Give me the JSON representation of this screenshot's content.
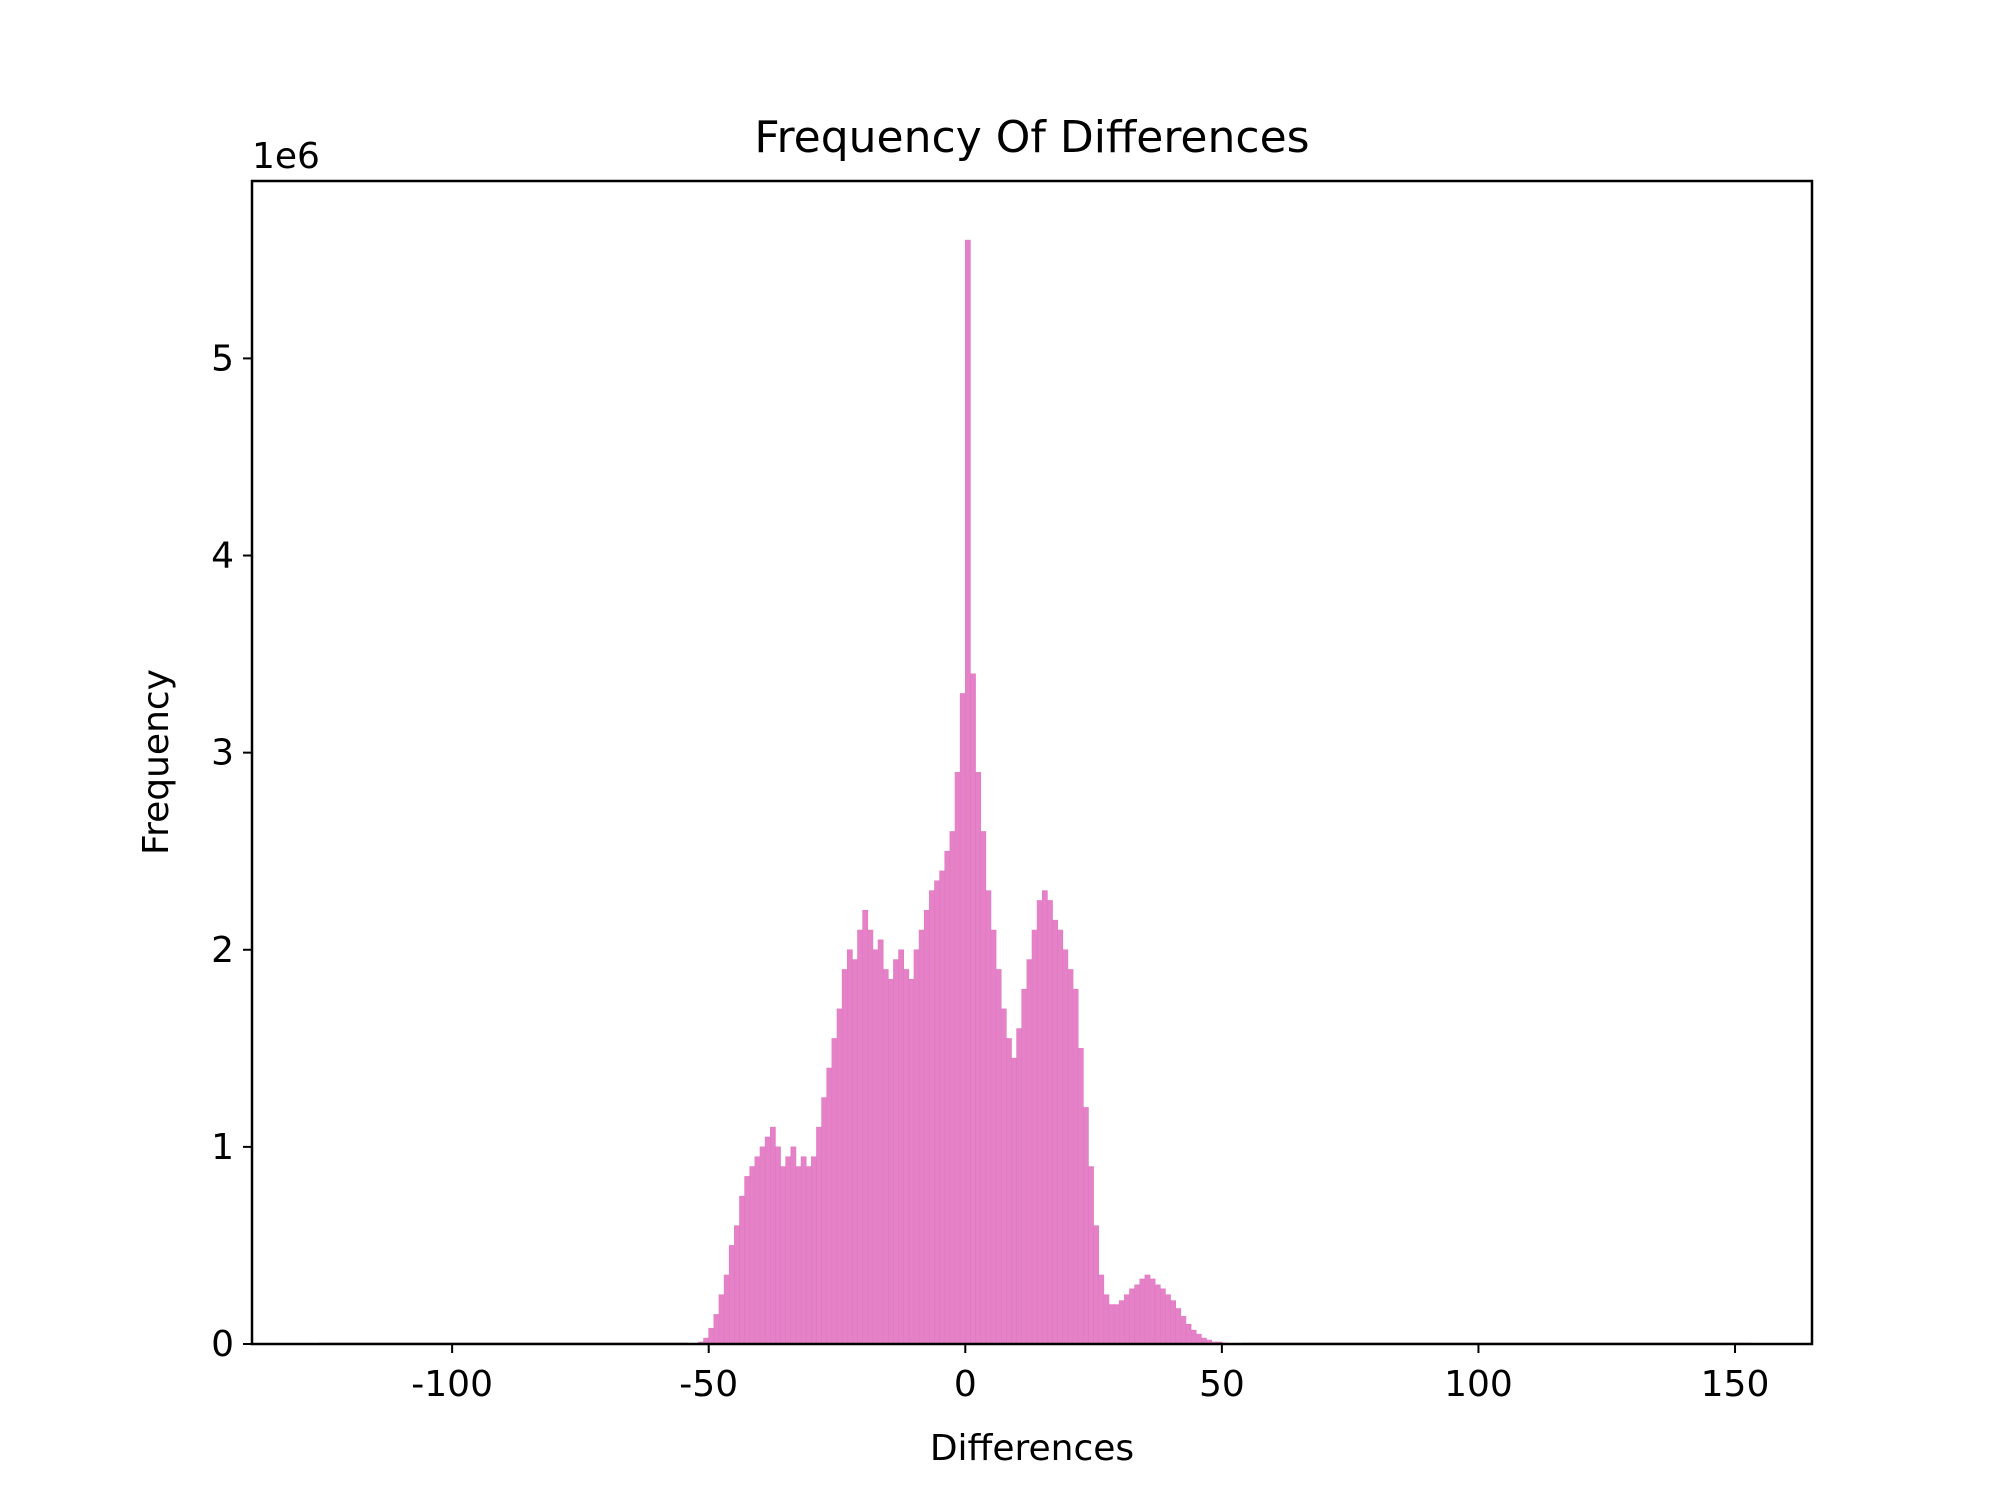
{
  "chart_data": {
    "type": "histogram",
    "title": "Frequency Of Differences",
    "xlabel": "Differences",
    "ylabel": "Frequency",
    "y_offset_label": "1e6",
    "color": "#e377c2",
    "bins": [
      -126,
      -54,
      -53,
      -52,
      -51,
      -50,
      -49,
      -48,
      -47,
      -46,
      -45,
      -44,
      -43,
      -42,
      -41,
      -40,
      -39,
      -38,
      -37,
      -36,
      -35,
      -34,
      -33,
      -32,
      -31,
      -30,
      -29,
      -28,
      -27,
      -26,
      -25,
      -24,
      -23,
      -22,
      -21,
      -20,
      -19,
      -18,
      -17,
      -16,
      -15,
      -14,
      -13,
      -12,
      -11,
      -10,
      -9,
      -8,
      -7,
      -6,
      -5,
      -4,
      -3,
      -2,
      -1,
      0,
      1,
      2,
      3,
      4,
      5,
      6,
      7,
      8,
      9,
      10,
      11,
      12,
      13,
      14,
      15,
      16,
      17,
      18,
      19,
      20,
      21,
      22,
      23,
      24,
      25,
      26,
      27,
      28,
      29,
      30,
      31,
      32,
      33,
      34,
      35,
      36,
      37,
      38,
      39,
      40,
      41,
      42,
      43,
      44,
      45,
      46,
      47,
      48,
      49,
      50,
      51,
      52,
      53,
      54,
      153
    ],
    "counts": [
      0.005,
      0,
      0,
      0.01,
      0.03,
      0.08,
      0.15,
      0.25,
      0.35,
      0.5,
      0.6,
      0.75,
      0.85,
      0.9,
      0.95,
      1.0,
      1.05,
      1.1,
      1.0,
      0.9,
      0.95,
      1.0,
      0.9,
      0.95,
      0.9,
      0.95,
      1.1,
      1.25,
      1.4,
      1.55,
      1.7,
      1.9,
      2.0,
      1.95,
      2.1,
      2.2,
      2.1,
      2.0,
      2.05,
      1.9,
      1.85,
      1.95,
      2.0,
      1.9,
      1.85,
      2.0,
      2.1,
      2.2,
      2.3,
      2.35,
      2.4,
      2.5,
      2.6,
      2.9,
      3.3,
      5.6,
      3.4,
      2.9,
      2.6,
      2.3,
      2.1,
      1.9,
      1.7,
      1.55,
      1.45,
      1.6,
      1.8,
      1.95,
      2.1,
      2.25,
      2.3,
      2.25,
      2.15,
      2.1,
      2.0,
      1.9,
      1.8,
      1.5,
      1.2,
      0.9,
      0.6,
      0.35,
      0.25,
      0.2,
      0.2,
      0.22,
      0.25,
      0.28,
      0.3,
      0.33,
      0.35,
      0.33,
      0.3,
      0.28,
      0.25,
      0.22,
      0.18,
      0.14,
      0.1,
      0.07,
      0.05,
      0.03,
      0.02,
      0.01,
      0.01,
      0.005,
      0,
      0,
      0,
      0.005
    ],
    "xlim": [
      -139,
      165
    ],
    "ylim": [
      0,
      5.9
    ],
    "xticks": [
      -100,
      -50,
      0,
      50,
      100,
      150
    ],
    "yticks": [
      0,
      1,
      2,
      3,
      4,
      5
    ]
  }
}
